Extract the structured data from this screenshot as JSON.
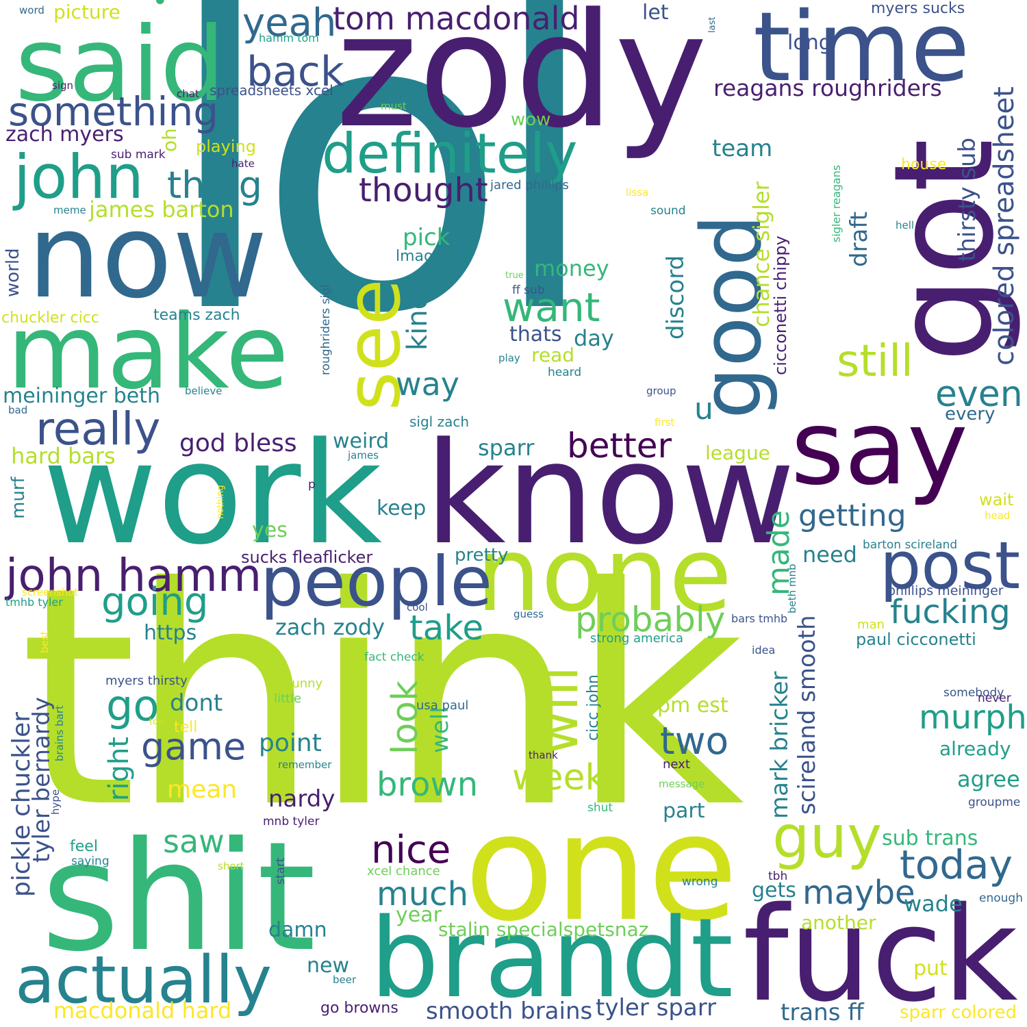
{
  "background": "#ffffff",
  "palette": {
    "purple_dark": "#440154",
    "purple": "#481f70",
    "indigo": "#3b528b",
    "blue": "#31688e",
    "teal": "#26828e",
    "green_teal": "#1f9e89",
    "green": "#35b779",
    "green_light": "#6ece58",
    "lime": "#b5de2b",
    "yellow": "#fde725"
  },
  "words": [
    {
      "id": "lol",
      "text": "lol"
    },
    {
      "id": "think",
      "text": "think"
    },
    {
      "id": "zody",
      "text": "zody"
    },
    {
      "id": "work",
      "text": "work"
    },
    {
      "id": "know",
      "text": "know"
    },
    {
      "id": "got",
      "text": "got"
    },
    {
      "id": "now",
      "text": "now"
    },
    {
      "id": "shit",
      "text": "shit"
    },
    {
      "id": "one",
      "text": "one"
    },
    {
      "id": "fuck",
      "text": "fuck"
    },
    {
      "id": "said",
      "text": "said"
    },
    {
      "id": "time",
      "text": "time"
    },
    {
      "id": "make",
      "text": "make"
    },
    {
      "id": "say",
      "text": "say"
    },
    {
      "id": "brandt",
      "text": "brandt"
    },
    {
      "id": "none",
      "text": "none"
    },
    {
      "id": "good",
      "text": "good"
    },
    {
      "id": "see",
      "text": "see"
    },
    {
      "id": "people",
      "text": "people"
    },
    {
      "id": "post",
      "text": "post"
    },
    {
      "id": "actually",
      "text": "actually"
    },
    {
      "id": "definitely",
      "text": "definitely"
    },
    {
      "id": "john",
      "text": "john"
    },
    {
      "id": "john_hamm",
      "text": "john hamm"
    },
    {
      "id": "something",
      "text": "something"
    },
    {
      "id": "really",
      "text": "really"
    },
    {
      "id": "will",
      "text": "will"
    },
    {
      "id": "guy",
      "text": "guy"
    },
    {
      "id": "back",
      "text": "back"
    },
    {
      "id": "thing",
      "text": "thing"
    },
    {
      "id": "tom_macdonald",
      "text": "tom macdonald"
    },
    {
      "id": "yeah",
      "text": "yeah"
    },
    {
      "id": "want",
      "text": "want"
    },
    {
      "id": "still",
      "text": "still"
    },
    {
      "id": "going",
      "text": "going"
    },
    {
      "id": "thought",
      "text": "thought"
    },
    {
      "id": "colored_spreadsheet",
      "text": "colored spreadsheet"
    },
    {
      "id": "reagans_roughriders",
      "text": "reagans roughriders"
    },
    {
      "id": "probably",
      "text": "probably"
    },
    {
      "id": "fucking",
      "text": "fucking"
    },
    {
      "id": "today",
      "text": "today"
    },
    {
      "id": "maybe",
      "text": "maybe"
    },
    {
      "id": "week",
      "text": "week"
    },
    {
      "id": "nice",
      "text": "nice"
    },
    {
      "id": "take",
      "text": "take"
    },
    {
      "id": "go",
      "text": "go"
    },
    {
      "id": "two",
      "text": "two"
    },
    {
      "id": "brown",
      "text": "brown"
    },
    {
      "id": "game",
      "text": "game"
    },
    {
      "id": "better",
      "text": "better"
    },
    {
      "id": "getting",
      "text": "getting"
    },
    {
      "id": "even",
      "text": "even"
    },
    {
      "id": "murph",
      "text": "murph"
    },
    {
      "id": "look",
      "text": "look"
    },
    {
      "id": "kinda",
      "text": "kinda"
    },
    {
      "id": "way",
      "text": "way"
    },
    {
      "id": "much",
      "text": "much"
    },
    {
      "id": "saw",
      "text": "saw"
    },
    {
      "id": "made",
      "text": "made"
    },
    {
      "id": "god_bless",
      "text": "god bless"
    },
    {
      "id": "james_barton",
      "text": "james barton"
    },
    {
      "id": "pickle_chuckler",
      "text": "pickle chuckler"
    },
    {
      "id": "tyler_bernardy",
      "text": "tyler bernardy"
    },
    {
      "id": "scireland_smooth",
      "text": "scireland smooth"
    },
    {
      "id": "mark_bricker",
      "text": "mark bricker"
    },
    {
      "id": "chance_sigler",
      "text": "chance sigler"
    },
    {
      "id": "cicconetti_chippy",
      "text": "cicconetti chippy"
    },
    {
      "id": "thirsty_sub",
      "text": "thirsty sub"
    },
    {
      "id": "zach_zody",
      "text": "zach zody"
    },
    {
      "id": "smooth_brains",
      "text": "smooth brains"
    },
    {
      "id": "tyler_sparr",
      "text": "tyler sparr"
    },
    {
      "id": "macdonald_hard",
      "text": "macdonald hard"
    },
    {
      "id": "stalin_specialspetsnaz",
      "text": "stalin specialspetsnaz"
    },
    {
      "id": "trans_ff",
      "text": "trans ff"
    },
    {
      "id": "sparr_colored",
      "text": "sparr colored"
    },
    {
      "id": "meininger_beth",
      "text": "meininger beth"
    },
    {
      "id": "zach_myers",
      "text": "zach myers"
    },
    {
      "id": "hard_bars",
      "text": "hard bars"
    },
    {
      "id": "sucks_fleaflicker",
      "text": "sucks fleaflicker"
    },
    {
      "id": "sub_trans",
      "text": "sub trans"
    },
    {
      "id": "paul_cicconetti",
      "text": "paul cicconetti"
    },
    {
      "id": "dont",
      "text": "dont"
    },
    {
      "id": "right",
      "text": "right"
    },
    {
      "id": "well",
      "text": "well"
    },
    {
      "id": "point",
      "text": "point"
    },
    {
      "id": "mean",
      "text": "mean"
    },
    {
      "id": "nardy",
      "text": "nardy"
    },
    {
      "id": "money",
      "text": "money"
    },
    {
      "id": "thats",
      "text": "thats"
    },
    {
      "id": "day",
      "text": "day"
    },
    {
      "id": "read",
      "text": "read"
    },
    {
      "id": "pick",
      "text": "pick"
    },
    {
      "id": "discord",
      "text": "discord"
    },
    {
      "id": "draft",
      "text": "draft"
    },
    {
      "id": "team",
      "text": "team"
    },
    {
      "id": "long",
      "text": "long"
    },
    {
      "id": "let",
      "text": "let"
    },
    {
      "id": "u",
      "text": "u"
    },
    {
      "id": "sparr",
      "text": "sparr"
    },
    {
      "id": "keep",
      "text": "keep"
    },
    {
      "id": "weird",
      "text": "weird"
    },
    {
      "id": "league",
      "text": "league"
    },
    {
      "id": "need",
      "text": "need"
    },
    {
      "id": "agree",
      "text": "agree"
    },
    {
      "id": "already",
      "text": "already"
    },
    {
      "id": "part",
      "text": "part"
    },
    {
      "id": "year",
      "text": "year"
    },
    {
      "id": "wade",
      "text": "wade"
    },
    {
      "id": "gets",
      "text": "gets"
    },
    {
      "id": "another",
      "text": "another"
    },
    {
      "id": "put",
      "text": "put"
    },
    {
      "id": "new",
      "text": "new"
    },
    {
      "id": "damn",
      "text": "damn"
    },
    {
      "id": "pm_est",
      "text": "pm est"
    },
    {
      "id": "https",
      "text": "https"
    },
    {
      "id": "yes",
      "text": "yes"
    },
    {
      "id": "pretty",
      "text": "pretty"
    },
    {
      "id": "every",
      "text": "every"
    },
    {
      "id": "wow",
      "text": "wow"
    },
    {
      "id": "oh",
      "text": "oh"
    },
    {
      "id": "playing",
      "text": "playing"
    },
    {
      "id": "picture",
      "text": "picture"
    },
    {
      "id": "world",
      "text": "world"
    },
    {
      "id": "murf",
      "text": "murf"
    },
    {
      "id": "chuckler_cicc",
      "text": "chuckler cicc"
    },
    {
      "id": "teams_zach",
      "text": "teams zach"
    },
    {
      "id": "house",
      "text": "house"
    },
    {
      "id": "wait",
      "text": "wait"
    },
    {
      "id": "myers_sucks",
      "text": "myers sucks"
    },
    {
      "id": "spreadsheets_xcel",
      "text": "spreadsheets xcel"
    },
    {
      "id": "jared_phillips",
      "text": "jared phillips"
    },
    {
      "id": "lmao",
      "text": "lmao"
    },
    {
      "id": "feel",
      "text": "feel"
    },
    {
      "id": "tell",
      "text": "tell"
    },
    {
      "id": "myers_thirsty",
      "text": "myers thirsty"
    },
    {
      "id": "funny",
      "text": "funny"
    },
    {
      "id": "little",
      "text": "little"
    },
    {
      "id": "usa_paul",
      "text": "usa paul"
    },
    {
      "id": "cicc_john",
      "text": "cicc john"
    },
    {
      "id": "strong_america",
      "text": "strong america"
    },
    {
      "id": "fact_check",
      "text": "fact check"
    },
    {
      "id": "xcel_chance",
      "text": "xcel chance"
    },
    {
      "id": "go_browns",
      "text": "go browns"
    },
    {
      "id": "mnb_tyler",
      "text": "mnb tyler"
    },
    {
      "id": "barton_scireland",
      "text": "barton scireland"
    },
    {
      "id": "phillips_meininger",
      "text": "phillips meininger"
    },
    {
      "id": "bars_tmhb",
      "text": "bars tmhb"
    },
    {
      "id": "tmhb_tyler",
      "text": "tmhb tyler"
    },
    {
      "id": "sigl_zach",
      "text": "sigl zach"
    },
    {
      "id": "roughriders_sigl",
      "text": "roughriders sigl"
    },
    {
      "id": "sigler_reagans",
      "text": "sigler reagans"
    },
    {
      "id": "beth_mnb",
      "text": "beth mnb"
    },
    {
      "id": "brains_bart",
      "text": "brains bart"
    },
    {
      "id": "sub_mark",
      "text": "sub mark"
    },
    {
      "id": "hamm_tom",
      "text": "hamm tom"
    },
    {
      "id": "ff_sub",
      "text": "ff sub"
    },
    {
      "id": "somebody",
      "text": "somebody"
    },
    {
      "id": "never",
      "text": "never"
    },
    {
      "id": "groupme",
      "text": "groupme"
    },
    {
      "id": "enough",
      "text": "enough"
    },
    {
      "id": "tbh",
      "text": "tbh"
    },
    {
      "id": "wrong",
      "text": "wrong"
    },
    {
      "id": "next",
      "text": "next"
    },
    {
      "id": "message",
      "text": "message"
    },
    {
      "id": "shut",
      "text": "shut"
    },
    {
      "id": "thank",
      "text": "thank"
    },
    {
      "id": "remember",
      "text": "remember"
    },
    {
      "id": "start",
      "text": "start"
    },
    {
      "id": "short",
      "text": "short"
    },
    {
      "id": "saying",
      "text": "saying"
    },
    {
      "id": "hype",
      "text": "hype"
    },
    {
      "id": "beer",
      "text": "beer"
    },
    {
      "id": "top",
      "text": "top"
    },
    {
      "id": "best",
      "text": "best"
    },
    {
      "id": "screenshot",
      "text": "screenshot"
    },
    {
      "id": "cool",
      "text": "cool"
    },
    {
      "id": "guess",
      "text": "guess"
    },
    {
      "id": "idea",
      "text": "idea"
    },
    {
      "id": "man",
      "text": "man"
    },
    {
      "id": "head",
      "text": "head"
    },
    {
      "id": "nothing",
      "text": "nothing"
    },
    {
      "id": "p",
      "text": "p"
    },
    {
      "id": "james",
      "text": "james"
    },
    {
      "id": "first",
      "text": "first"
    },
    {
      "id": "group",
      "text": "group"
    },
    {
      "id": "sound",
      "text": "sound"
    },
    {
      "id": "lissa",
      "text": "lissa"
    },
    {
      "id": "hell",
      "text": "hell"
    },
    {
      "id": "true",
      "text": "true"
    },
    {
      "id": "play",
      "text": "play"
    },
    {
      "id": "heard",
      "text": "heard"
    },
    {
      "id": "believe",
      "text": "believe"
    },
    {
      "id": "bad",
      "text": "bad"
    },
    {
      "id": "meme",
      "text": "meme"
    },
    {
      "id": "hate",
      "text": "hate"
    },
    {
      "id": "chat",
      "text": "chat"
    },
    {
      "id": "sign",
      "text": "sign"
    },
    {
      "id": "word",
      "text": "word"
    },
    {
      "id": "must",
      "text": "must"
    },
    {
      "id": "last",
      "text": "last"
    }
  ]
}
